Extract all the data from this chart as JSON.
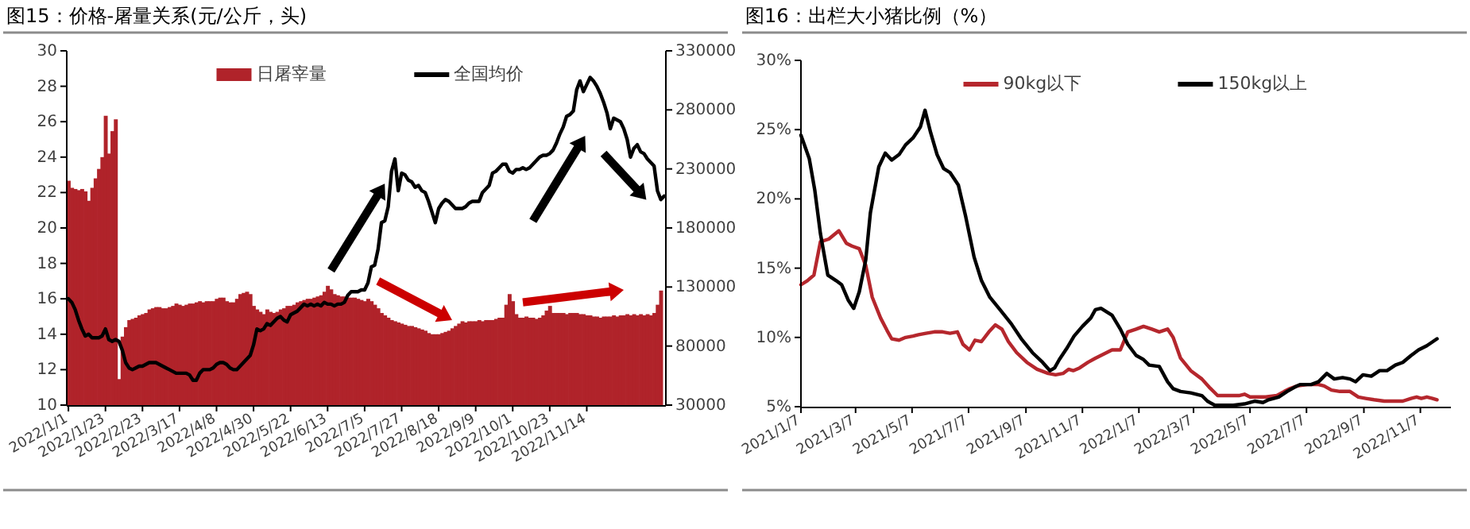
{
  "chart_data": [
    {
      "type": "bar",
      "title": "图15：价格-屠量关系(元/公斤，头)",
      "categories": [
        "2022/1/1",
        null,
        null,
        null,
        null,
        null,
        null,
        null,
        null,
        null,
        null,
        "2022/1/23",
        null,
        null,
        null,
        null,
        null,
        null,
        null,
        null,
        null,
        null,
        "2022/2/23",
        null,
        null,
        null,
        null,
        null,
        null,
        null,
        null,
        null,
        null,
        "2022/3/17",
        null,
        null,
        null,
        null,
        null,
        null,
        null,
        null,
        null,
        null,
        "2022/4/8",
        null,
        null,
        null,
        null,
        null,
        null,
        null,
        null,
        null,
        null,
        "2022/4/30",
        null,
        null,
        null,
        null,
        null,
        null,
        null,
        null,
        null,
        null,
        "2022/5/22",
        null,
        null,
        null,
        null,
        null,
        null,
        null,
        null,
        null,
        null,
        "2022/6/13",
        null,
        null,
        null,
        null,
        null,
        null,
        null,
        null,
        null,
        null,
        "2022/7/5",
        null,
        null,
        null,
        null,
        null,
        null,
        null,
        null,
        null,
        null,
        "2022/7/27",
        null,
        null,
        null,
        null,
        null,
        null,
        null,
        null,
        null,
        null,
        "2022/8/18",
        null,
        null,
        null,
        null,
        null,
        null,
        null,
        null,
        null,
        null,
        "2022/9/9",
        null,
        null,
        null,
        null,
        null,
        null,
        null,
        null,
        null,
        null,
        "2022/10/1",
        null,
        null,
        null,
        null,
        null,
        null,
        null,
        null,
        null,
        null,
        "2022/10/23",
        null,
        null,
        null,
        null,
        null,
        null,
        null,
        null,
        null,
        null,
        "2022/11/14",
        null,
        null,
        null,
        null,
        null,
        null,
        null,
        null,
        null,
        null,
        null,
        null,
        null,
        null,
        null,
        null,
        null,
        null,
        null,
        null,
        null,
        null,
        null
      ],
      "series": [
        {
          "name": "日屠宰量",
          "type": "bar",
          "axis": "y2",
          "color": "#b0232a",
          "values": [
            220000,
            214000,
            213000,
            212000,
            213000,
            211000,
            203000,
            214000,
            222000,
            230000,
            240000,
            275000,
            243000,
            262000,
            272000,
            52000,
            88000,
            96000,
            102000,
            103000,
            104000,
            106000,
            107000,
            108000,
            111000,
            112000,
            113000,
            113000,
            112000,
            112000,
            113000,
            114000,
            116000,
            115000,
            114000,
            115000,
            116000,
            116000,
            117000,
            118000,
            117000,
            118000,
            118000,
            118000,
            120000,
            121000,
            121000,
            118000,
            117000,
            117000,
            120000,
            124000,
            125000,
            126000,
            124000,
            114000,
            111000,
            109000,
            107000,
            111000,
            109000,
            108000,
            109000,
            111000,
            112000,
            114000,
            114000,
            115000,
            117000,
            118000,
            119000,
            120000,
            120000,
            121000,
            122000,
            123000,
            126000,
            131000,
            128000,
            124000,
            123000,
            122000,
            122000,
            121000,
            121000,
            121000,
            120000,
            119000,
            118000,
            120000,
            118000,
            115000,
            112000,
            108000,
            106000,
            104000,
            102000,
            101000,
            100000,
            99000,
            98000,
            97000,
            97000,
            96000,
            95000,
            94000,
            93000,
            91000,
            90000,
            90000,
            90000,
            91000,
            92000,
            93000,
            95000,
            97000,
            99000,
            101000,
            100000,
            101000,
            101000,
            101000,
            102000,
            101000,
            102000,
            102000,
            102000,
            103000,
            104000,
            104000,
            115000,
            124000,
            118000,
            107000,
            104000,
            104000,
            105000,
            104000,
            104000,
            103000,
            104000,
            106000,
            110000,
            114000,
            108000,
            108000,
            108000,
            108000,
            107000,
            108000,
            108000,
            108000,
            107000,
            107000,
            106000,
            106000,
            105000,
            105000,
            104000,
            105000,
            105000,
            105000,
            106000,
            105000,
            106000,
            106000,
            107000,
            106000,
            107000,
            106000,
            107000,
            106000,
            107000,
            106000,
            108000,
            115000,
            127000,
            null
          ]
        },
        {
          "name": "全国均价",
          "type": "line",
          "color": "#000000",
          "values": [
            16.0,
            15.8,
            15.4,
            14.8,
            14.3,
            13.9,
            14.0,
            13.8,
            13.8,
            13.8,
            13.9,
            14.3,
            13.7,
            13.6,
            13.7,
            13.6,
            13.1,
            12.4,
            12.1,
            12.0,
            12.1,
            12.2,
            12.2,
            12.3,
            12.4,
            12.4,
            12.4,
            12.3,
            12.2,
            12.1,
            12.0,
            11.9,
            11.8,
            11.8,
            11.8,
            11.8,
            11.7,
            11.4,
            11.4,
            11.8,
            12.0,
            12.0,
            12.0,
            12.1,
            12.3,
            12.4,
            12.4,
            12.3,
            12.1,
            12.0,
            12.0,
            12.2,
            12.4,
            12.6,
            12.8,
            13.4,
            14.3,
            14.2,
            14.3,
            14.6,
            14.5,
            14.7,
            14.9,
            15.0,
            14.8,
            14.7,
            15.1,
            15.2,
            15.3,
            15.5,
            15.7,
            15.6,
            15.7,
            15.6,
            15.7,
            15.6,
            15.8,
            15.7,
            15.7,
            15.6,
            15.7,
            15.7,
            15.8,
            16.2,
            16.4,
            16.4,
            16.4,
            16.5,
            16.5,
            16.9,
            17.8,
            17.9,
            18.8,
            20.3,
            20.4,
            21.2,
            23.2,
            23.9,
            22.1,
            23.1,
            23.0,
            22.7,
            22.6,
            22.3,
            22.4,
            22.1,
            22.0,
            21.5,
            20.9,
            20.3,
            21.1,
            21.4,
            21.6,
            21.5,
            21.3,
            21.1,
            21.1,
            21.1,
            21.2,
            21.4,
            21.5,
            21.5,
            21.5,
            22.0,
            22.2,
            22.4,
            23.1,
            23.2,
            23.4,
            23.6,
            23.6,
            23.2,
            23.1,
            23.3,
            23.3,
            23.4,
            23.3,
            23.4,
            23.6,
            23.8,
            24.0,
            24.1,
            24.1,
            24.2,
            24.4,
            24.8,
            25.3,
            25.7,
            26.3,
            26.4,
            26.6,
            27.8,
            28.3,
            27.7,
            28.1,
            28.5,
            28.3,
            28.0,
            27.6,
            27.1,
            26.5,
            25.6,
            26.2,
            26.1,
            26.0,
            25.6,
            25.0,
            24.0,
            24.5,
            24.7,
            24.3,
            24.2,
            23.9,
            23.7,
            23.5,
            22.1,
            21.6,
            21.8
          ]
        }
      ],
      "ylim": [
        10,
        30
      ],
      "yticks": [
        10,
        12,
        14,
        16,
        18,
        20,
        22,
        24,
        26,
        28,
        30
      ],
      "y2lim": [
        30000,
        330000
      ],
      "y2ticks": [
        30000,
        80000,
        130000,
        180000,
        230000,
        280000,
        330000
      ],
      "legend": "top"
    },
    {
      "type": "line",
      "title": "图16：出栏大小猪比例（%）",
      "xlim": [
        "2021-01-07",
        "2022-12-10"
      ],
      "xticks": [
        {
          "value": "2021-01-07",
          "label": "2021/1/7"
        },
        {
          "value": "2021-03-07",
          "label": "2021/3/7"
        },
        {
          "value": "2021-05-07",
          "label": "2021/5/7"
        },
        {
          "value": "2021-07-07",
          "label": "2021/7/7"
        },
        {
          "value": "2021-09-07",
          "label": "2021/9/7"
        },
        {
          "value": "2021-11-07",
          "label": "2021/11/7"
        },
        {
          "value": "2022-01-07",
          "label": "2022/1/7"
        },
        {
          "value": "2022-03-07",
          "label": "2022/3/7"
        },
        {
          "value": "2022-05-07",
          "label": "2022/5/7"
        },
        {
          "value": "2022-07-07",
          "label": "2022/7/7"
        },
        {
          "value": "2022-09-07",
          "label": "2022/9/7"
        },
        {
          "value": "2022-11-07",
          "label": "2022/11/7"
        }
      ],
      "ylim": [
        5,
        30
      ],
      "yticks": [
        {
          "value": 5,
          "label": "5%"
        },
        {
          "value": 10,
          "label": "10%"
        },
        {
          "value": 15,
          "label": "15%"
        },
        {
          "value": 20,
          "label": "20%"
        },
        {
          "value": 25,
          "label": "25%"
        },
        {
          "value": 30,
          "label": "30%"
        }
      ],
      "series": [
        {
          "name": "90kg以下",
          "color": "#b5272d",
          "x": [
            "2021-01-07",
            "2021-01-14",
            "2021-01-21",
            "2021-01-28",
            "2021-02-06",
            "2021-02-17",
            "2021-02-25",
            "2021-03-03",
            "2021-03-11",
            "2021-03-18",
            "2021-03-25",
            "2021-04-03",
            "2021-04-10",
            "2021-04-15",
            "2021-04-23",
            "2021-04-30",
            "2021-05-08",
            "2021-05-14",
            "2021-05-22",
            "2021-05-31",
            "2021-06-09",
            "2021-06-17",
            "2021-06-25",
            "2021-07-01",
            "2021-07-08",
            "2021-07-14",
            "2021-07-21",
            "2021-07-29",
            "2021-08-05",
            "2021-08-12",
            "2021-08-19",
            "2021-08-28",
            "2021-09-08",
            "2021-09-19",
            "2021-10-01",
            "2021-10-09",
            "2021-10-17",
            "2021-10-23",
            "2021-10-28",
            "2021-11-04",
            "2021-11-13",
            "2021-11-21",
            "2021-11-27",
            "2021-12-09",
            "2021-12-18",
            "2021-12-26",
            "2022-01-04",
            "2022-01-12",
            "2022-01-21",
            "2022-01-29",
            "2022-02-07",
            "2022-02-13",
            "2022-02-21",
            "2022-03-04",
            "2022-03-16",
            "2022-03-24",
            "2022-04-02",
            "2022-04-13",
            "2022-04-25",
            "2022-05-01",
            "2022-05-07",
            "2022-05-24",
            "2022-06-05",
            "2022-06-13",
            "2022-06-19",
            "2022-06-27",
            "2022-07-08",
            "2022-07-20",
            "2022-07-26",
            "2022-08-03",
            "2022-08-12",
            "2022-08-23",
            "2022-09-01",
            "2022-09-09",
            "2022-09-18",
            "2022-09-29",
            "2022-10-08",
            "2022-10-19",
            "2022-10-28",
            "2022-11-03",
            "2022-11-08",
            "2022-11-14",
            "2022-11-20",
            "2022-11-25"
          ],
          "values": [
            13.8,
            14.1,
            14.5,
            16.9,
            17.1,
            17.7,
            16.8,
            16.6,
            16.4,
            15.2,
            12.9,
            11.4,
            10.5,
            9.9,
            9.8,
            10.0,
            10.1,
            10.2,
            10.3,
            10.4,
            10.4,
            10.3,
            10.4,
            9.5,
            9.1,
            9.8,
            9.7,
            10.4,
            10.9,
            10.6,
            9.7,
            8.9,
            8.2,
            7.7,
            7.4,
            7.3,
            7.4,
            7.7,
            7.6,
            7.8,
            8.2,
            8.5,
            8.7,
            9.1,
            9.1,
            10.4,
            10.6,
            10.8,
            10.6,
            10.4,
            10.6,
            10.0,
            8.5,
            7.6,
            7.0,
            6.4,
            5.8,
            5.8,
            5.8,
            5.9,
            5.7,
            5.7,
            5.8,
            6.1,
            6.3,
            6.5,
            6.6,
            6.6,
            6.5,
            6.2,
            6.1,
            6.1,
            5.7,
            5.6,
            5.5,
            5.4,
            5.4,
            5.4,
            5.6,
            5.7,
            5.6,
            5.7,
            5.6,
            5.5
          ]
        },
        {
          "name": "150kg以上",
          "color": "#000000",
          "x": [
            "2021-01-07",
            "2021-01-16",
            "2021-01-22",
            "2021-01-28",
            "2021-02-05",
            "2021-02-14",
            "2021-02-20",
            "2021-02-27",
            "2021-03-05",
            "2021-03-11",
            "2021-03-18",
            "2021-03-23",
            "2021-04-01",
            "2021-04-08",
            "2021-04-15",
            "2021-04-23",
            "2021-04-30",
            "2021-05-08",
            "2021-05-16",
            "2021-05-21",
            "2021-05-27",
            "2021-06-03",
            "2021-06-10",
            "2021-06-17",
            "2021-06-26",
            "2021-07-04",
            "2021-07-13",
            "2021-07-21",
            "2021-07-30",
            "2021-08-10",
            "2021-08-22",
            "2021-09-02",
            "2021-09-14",
            "2021-09-25",
            "2021-10-03",
            "2021-10-08",
            "2021-10-13",
            "2021-10-21",
            "2021-10-29",
            "2021-11-07",
            "2021-11-16",
            "2021-11-21",
            "2021-11-27",
            "2021-12-09",
            "2021-12-18",
            "2021-12-26",
            "2022-01-04",
            "2022-01-12",
            "2022-01-18",
            "2022-01-29",
            "2022-02-07",
            "2022-02-13",
            "2022-02-21",
            "2022-03-04",
            "2022-03-16",
            "2022-03-22",
            "2022-03-30",
            "2022-04-08",
            "2022-04-19",
            "2022-05-01",
            "2022-05-12",
            "2022-05-21",
            "2022-05-27",
            "2022-06-07",
            "2022-06-16",
            "2022-06-24",
            "2022-06-30",
            "2022-07-12",
            "2022-07-20",
            "2022-07-29",
            "2022-08-06",
            "2022-08-15",
            "2022-08-23",
            "2022-08-29",
            "2022-09-06",
            "2022-09-15",
            "2022-09-24",
            "2022-10-02",
            "2022-10-11",
            "2022-10-19",
            "2022-10-28",
            "2022-11-05",
            "2022-11-14",
            "2022-11-25"
          ],
          "values": [
            24.6,
            22.9,
            20.6,
            17.5,
            14.5,
            14.1,
            13.8,
            12.7,
            12.1,
            13.3,
            15.6,
            19.0,
            22.3,
            23.3,
            22.8,
            23.2,
            23.9,
            24.4,
            25.2,
            26.4,
            24.8,
            23.2,
            22.2,
            21.9,
            21.0,
            18.7,
            15.8,
            14.1,
            12.9,
            12.0,
            11.0,
            9.9,
            8.9,
            8.2,
            7.6,
            7.8,
            8.4,
            9.2,
            10.1,
            10.8,
            11.4,
            12.0,
            12.1,
            11.6,
            10.6,
            9.5,
            8.7,
            8.4,
            8.0,
            7.9,
            6.8,
            6.3,
            6.1,
            6.0,
            5.8,
            5.4,
            5.1,
            5.1,
            5.1,
            5.2,
            5.4,
            5.3,
            5.5,
            5.7,
            6.1,
            6.4,
            6.6,
            6.6,
            6.8,
            7.4,
            7.0,
            7.1,
            7.0,
            6.8,
            7.3,
            7.2,
            7.6,
            7.6,
            8.0,
            8.2,
            8.7,
            9.1,
            9.4,
            9.9
          ]
        }
      ],
      "legend": "top"
    }
  ]
}
